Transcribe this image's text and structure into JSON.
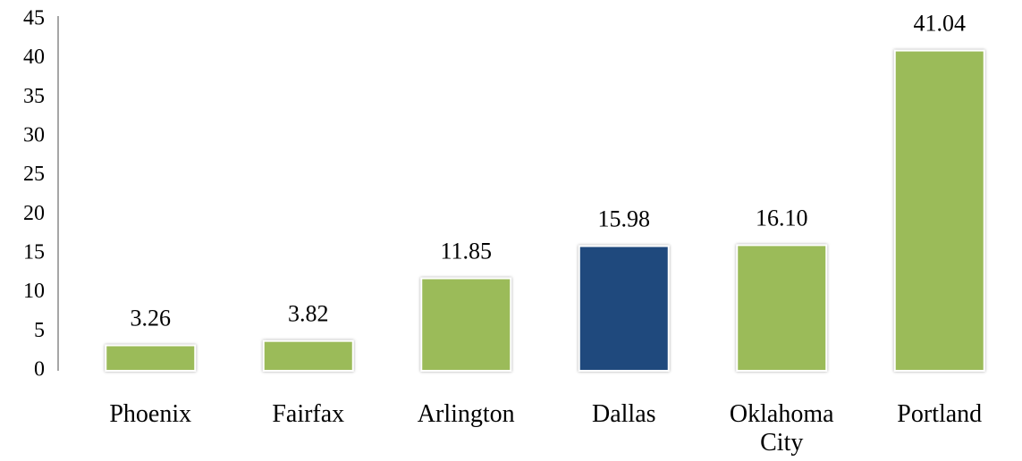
{
  "chart_data": {
    "type": "bar",
    "categories": [
      "Phoenix",
      "Fairfax",
      "Arlington",
      "Dallas",
      "Oklahoma City",
      "Portland"
    ],
    "values": [
      3.26,
      3.82,
      11.85,
      15.98,
      16.1,
      41.04
    ],
    "value_labels": [
      "3.26",
      "3.82",
      "11.85",
      "15.98",
      "16.10",
      "41.04"
    ],
    "colors": [
      "#9bbb59",
      "#9bbb59",
      "#9bbb59",
      "#1f497d",
      "#9bbb59",
      "#9bbb59"
    ],
    "ylim": [
      0,
      45
    ],
    "yticks": [
      0,
      5,
      10,
      15,
      20,
      25,
      30,
      35,
      40,
      45
    ],
    "grid": false
  }
}
